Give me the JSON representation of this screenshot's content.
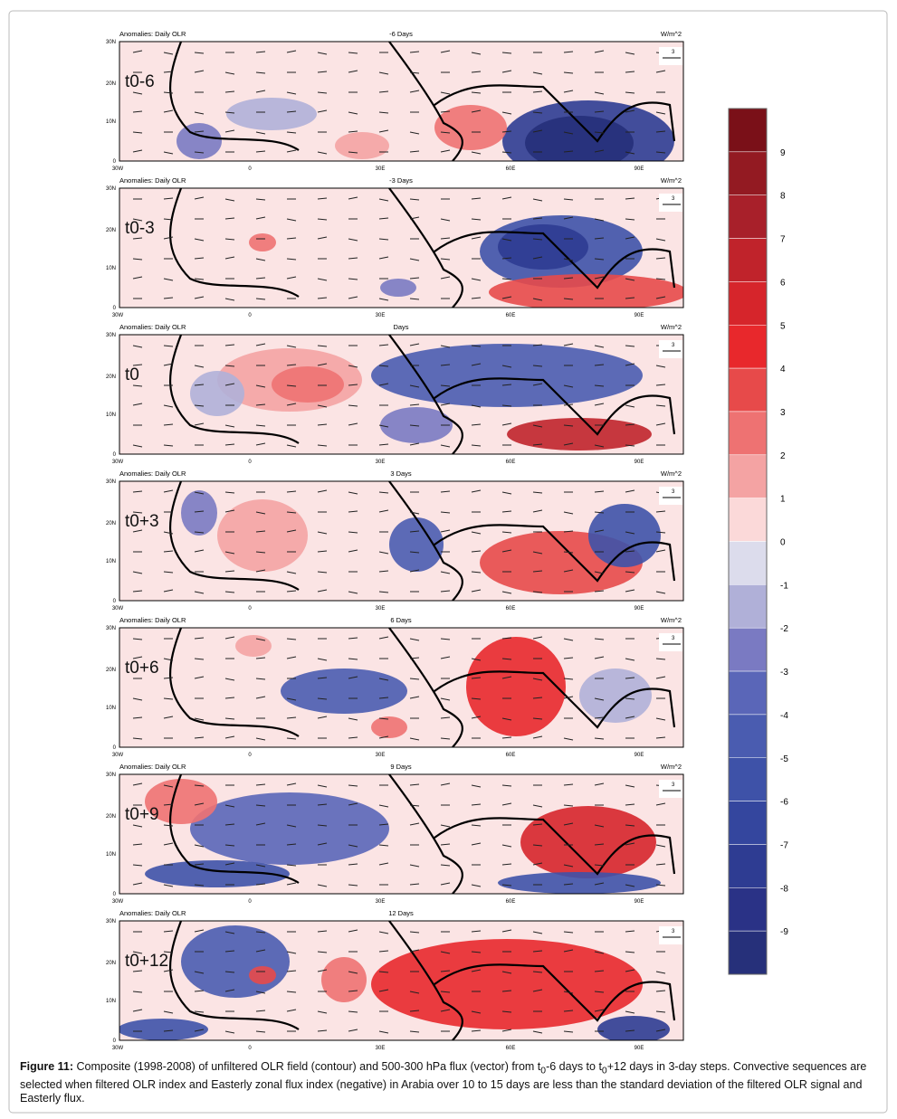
{
  "figure": {
    "panels": [
      {
        "header_left": "Anomalies: Daily OLR",
        "header_center": "-6 Days",
        "units": "W/m^2",
        "label": "t0-6",
        "ref": "3"
      },
      {
        "header_left": "Anomalies: Daily OLR",
        "header_center": "-3 Days",
        "units": "W/m^2",
        "label": "t0-3",
        "ref": "3"
      },
      {
        "header_left": "Anomalies: Daily OLR",
        "header_center": "Days",
        "units": "W/m^2",
        "label": "t0",
        "ref": "3"
      },
      {
        "header_left": "Anomalies: Daily OLR",
        "header_center": "3 Days",
        "units": "W/m^2",
        "label": "t0+3",
        "ref": "3"
      },
      {
        "header_left": "Anomalies: Daily OLR",
        "header_center": "6 Days",
        "units": "W/m^2",
        "label": "t0+6",
        "ref": "3"
      },
      {
        "header_left": "Anomalies: Daily OLR",
        "header_center": "9 Days",
        "units": "W/m^2",
        "label": "t0+9",
        "ref": "3"
      },
      {
        "header_left": "Anomalies: Daily OLR",
        "header_center": "12 Days",
        "label": "t0+12",
        "ref": "3"
      }
    ],
    "lat_ticks": [
      "30N",
      "20N",
      "10N",
      "0"
    ],
    "lon_ticks": [
      "30W",
      "0",
      "30E",
      "60E",
      "90E"
    ],
    "colorbar_ticks": [
      "9",
      "8",
      "7",
      "6",
      "5",
      "4",
      "3",
      "2",
      "1",
      "0",
      "-1",
      "-2",
      "-3",
      "-4",
      "-5",
      "-6",
      "-7",
      "-8",
      "-9"
    ],
    "caption": {
      "label": "Figure 11:",
      "part1": " Composite (1998-2008) of unfiltered OLR field (contour) and 500-300 hPa flux (vector) from t",
      "sub1": "0",
      "part2": "-6 days to t",
      "sub2": "0",
      "part3": "+12 days in 3-day steps. Convective sequences are selected when filtered OLR index and Easterly zonal flux index (negative) in Arabia over 10 to 15 days are less than the standard deviation of the filtered OLR signal and Easterly flux."
    }
  }
}
